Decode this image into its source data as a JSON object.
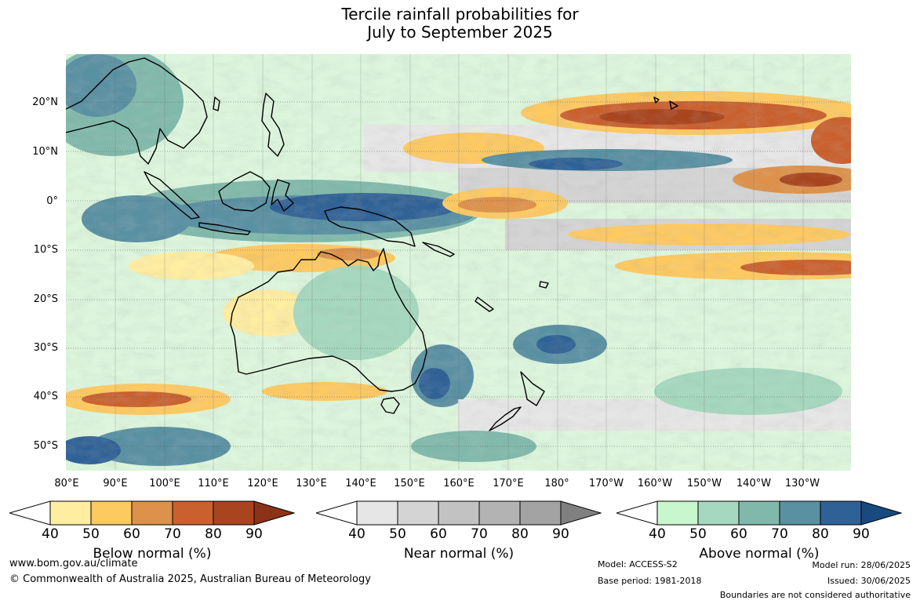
{
  "title": {
    "line1": "Tercile rainfall probabilities for",
    "line2": "July to September 2025"
  },
  "map": {
    "region": "Australia and western Pacific",
    "latitude_labels": [
      "20°N",
      "10°N",
      "0°",
      "10°S",
      "20°S",
      "30°S",
      "40°S",
      "50°S"
    ],
    "longitude_labels": [
      "80°E",
      "90°E",
      "100°E",
      "110°E",
      "120°E",
      "130°E",
      "140°E",
      "150°E",
      "160°E",
      "170°E",
      "180°",
      "170°W",
      "160°W",
      "150°W",
      "140°W",
      "130°W"
    ]
  },
  "legends": [
    {
      "title": "Below normal (%)",
      "ticks": [
        "40",
        "50",
        "60",
        "70",
        "80",
        "90"
      ],
      "colors": [
        "#ffffff",
        "#ffeda0",
        "#fdc961",
        "#dd914a",
        "#c9602e",
        "#a8451f",
        "#8c3218"
      ]
    },
    {
      "title": "Near normal (%)",
      "ticks": [
        "40",
        "50",
        "60",
        "70",
        "80",
        "90"
      ],
      "colors": [
        "#ffffff",
        "#e6e6e6",
        "#d4d4d4",
        "#c2c2c2",
        "#b3b3b3",
        "#a3a3a3",
        "#808080"
      ]
    },
    {
      "title": "Above normal (%)",
      "ticks": [
        "40",
        "50",
        "60",
        "70",
        "80",
        "90"
      ],
      "colors": [
        "#ffffff",
        "#c9f7cd",
        "#a5d8be",
        "#80b9ab",
        "#5990a2",
        "#2f6196",
        "#174a7e"
      ]
    }
  ],
  "footer": {
    "website": "www.bom.gov.au/climate",
    "copyright": "© Commonwealth of Australia 2025, Australian Bureau of Meteorology",
    "model": "Model: ACCESS-S2",
    "base_period": "Base period: 1981-2018",
    "model_run": "Model run: 28/06/2025",
    "issued": "Issued: 30/06/2025",
    "disclaimer": "Boundaries are not considered authoritative"
  }
}
